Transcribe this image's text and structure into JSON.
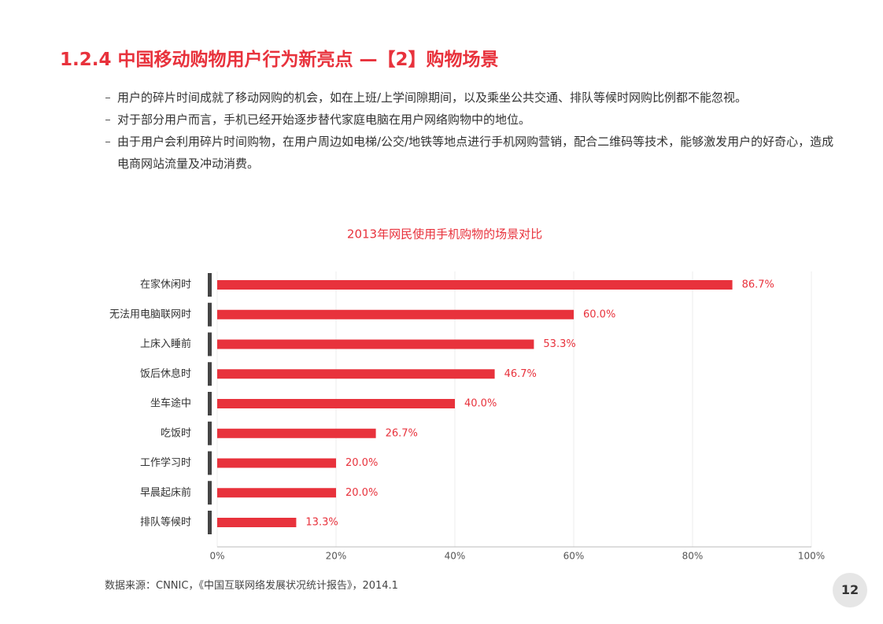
{
  "header": {
    "title": "1.2.4 中国移动购物用户行为新亮点 —【2】购物场景"
  },
  "bullets": [
    "用户的碎片时间成就了移动网购的机会，如在上班/上学间隙期间，以及乘坐公共交通、排队等候时网购比例都不能忽视。",
    "对于部分用户而言，手机已经开始逐步替代家庭电脑在用户网络购物中的地位。",
    "由于用户会利用碎片时间购物，在用户周边如电梯/公交/地铁等地点进行手机网购营销，配合二维码等技术，能够激发用户的好奇心，造成电商网站流量及冲动消费。"
  ],
  "chart_data": {
    "type": "hbar",
    "title": "2013年网民使用手机购物的场景对比",
    "categories": [
      "在家休闲时",
      "无法用电脑联网时",
      "上床入睡前",
      "饭后休息时",
      "坐车途中",
      "吃饭时",
      "工作学习时",
      "早晨起床前",
      "排队等候时"
    ],
    "values": [
      86.7,
      60.0,
      53.3,
      46.7,
      40.0,
      26.7,
      20.0,
      20.0,
      13.3
    ],
    "value_labels": [
      "86.7%",
      "60.0%",
      "53.3%",
      "46.7%",
      "40.0%",
      "26.7%",
      "20.0%",
      "20.0%",
      "13.3%"
    ],
    "color": "#e8323c",
    "xlim": [
      0,
      100
    ],
    "xticks": [
      {
        "value": 0,
        "label": "0%"
      },
      {
        "value": 20,
        "label": "20%"
      },
      {
        "value": 40,
        "label": "40%"
      },
      {
        "value": 60,
        "label": "60%"
      },
      {
        "value": 80,
        "label": "80%"
      },
      {
        "value": 100,
        "label": "100%"
      }
    ],
    "grid": true
  },
  "source": "数据来源：CNNIC，《中国互联网络发展状况统计报告》，2014.1",
  "page_number": "12"
}
